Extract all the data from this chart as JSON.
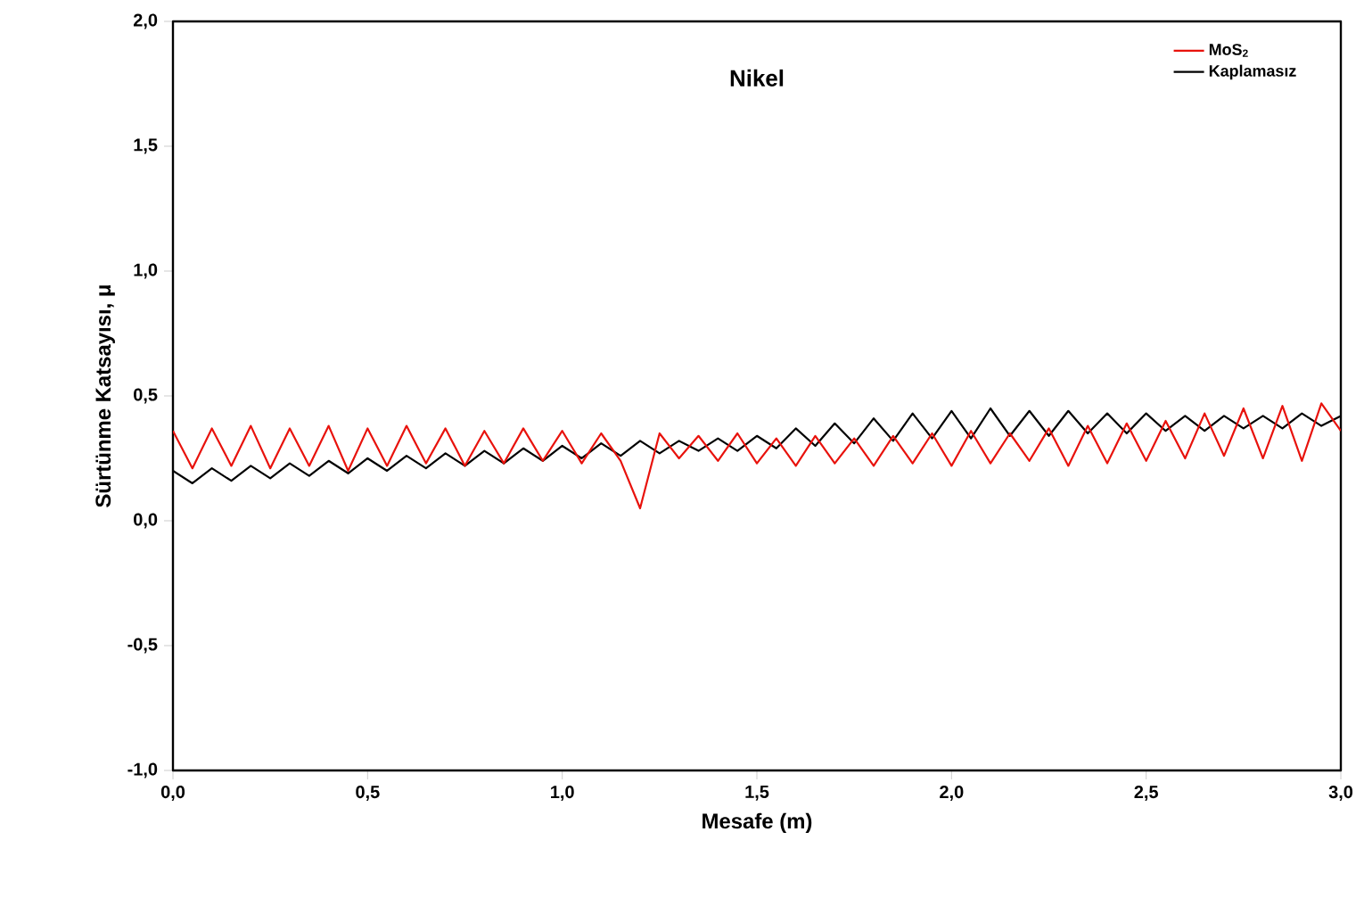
{
  "chart_data": {
    "type": "line",
    "title": "Nikel",
    "xlabel": "Mesafe (m)",
    "ylabel": "Sürtünme Katsayısı, μ",
    "xlim": [
      0,
      3
    ],
    "ylim": [
      -1,
      2
    ],
    "xticks": [
      {
        "value": 0,
        "label": "0,0"
      },
      {
        "value": 0.5,
        "label": "0,5"
      },
      {
        "value": 1,
        "label": "1,0"
      },
      {
        "value": 1.5,
        "label": "1,5"
      },
      {
        "value": 2,
        "label": "2,0"
      },
      {
        "value": 2.5,
        "label": "2,5"
      },
      {
        "value": 3,
        "label": "3,0"
      }
    ],
    "yticks": [
      {
        "value": -1,
        "label": "-1,0"
      },
      {
        "value": -0.5,
        "label": "-0,5"
      },
      {
        "value": 0,
        "label": "0,0"
      },
      {
        "value": 0.5,
        "label": "0,5"
      },
      {
        "value": 1,
        "label": "1,0"
      },
      {
        "value": 1.5,
        "label": "1,5"
      },
      {
        "value": 2,
        "label": "2,0"
      }
    ],
    "legend": "top right",
    "grid": false,
    "marker": "none",
    "line_style": "solid",
    "x": [
      0,
      0.05,
      0.1,
      0.15,
      0.2,
      0.25,
      0.3,
      0.35,
      0.4,
      0.45,
      0.5,
      0.55,
      0.6,
      0.65,
      0.7,
      0.75,
      0.8,
      0.85,
      0.9,
      0.95,
      1,
      1.05,
      1.1,
      1.15,
      1.2,
      1.25,
      1.3,
      1.35,
      1.4,
      1.45,
      1.5,
      1.55,
      1.6,
      1.65,
      1.7,
      1.75,
      1.8,
      1.85,
      1.9,
      1.95,
      2,
      2.05,
      2.1,
      2.15,
      2.2,
      2.25,
      2.3,
      2.35,
      2.4,
      2.45,
      2.5,
      2.55,
      2.6,
      2.65,
      2.7,
      2.75,
      2.8,
      2.85,
      2.9,
      2.95,
      3
    ],
    "series": [
      {
        "name": "MoS$_{2}$",
        "color": "#e8120c",
        "values": [
          0.36,
          0.21,
          0.37,
          0.22,
          0.38,
          0.21,
          0.37,
          0.22,
          0.38,
          0.2,
          0.37,
          0.22,
          0.38,
          0.23,
          0.37,
          0.22,
          0.36,
          0.23,
          0.37,
          0.24,
          0.36,
          0.23,
          0.35,
          0.24,
          0.05,
          0.35,
          0.25,
          0.34,
          0.24,
          0.35,
          0.23,
          0.33,
          0.22,
          0.34,
          0.23,
          0.33,
          0.22,
          0.34,
          0.23,
          0.35,
          0.22,
          0.36,
          0.23,
          0.35,
          0.24,
          0.37,
          0.22,
          0.38,
          0.23,
          0.39,
          0.24,
          0.4,
          0.25,
          0.43,
          0.26,
          0.45,
          0.25,
          0.46,
          0.24,
          0.47,
          0.36
        ]
      },
      {
        "name": "Kaplamasız",
        "color": "#000000",
        "values": [
          0.2,
          0.15,
          0.21,
          0.16,
          0.22,
          0.17,
          0.23,
          0.18,
          0.24,
          0.19,
          0.25,
          0.2,
          0.26,
          0.21,
          0.27,
          0.22,
          0.28,
          0.23,
          0.29,
          0.24,
          0.3,
          0.25,
          0.31,
          0.26,
          0.32,
          0.27,
          0.32,
          0.28,
          0.33,
          0.28,
          0.34,
          0.29,
          0.37,
          0.3,
          0.39,
          0.31,
          0.41,
          0.32,
          0.43,
          0.33,
          0.44,
          0.33,
          0.45,
          0.34,
          0.44,
          0.34,
          0.44,
          0.35,
          0.43,
          0.35,
          0.43,
          0.36,
          0.42,
          0.36,
          0.42,
          0.37,
          0.42,
          0.37,
          0.43,
          0.38,
          0.42
        ]
      }
    ]
  }
}
